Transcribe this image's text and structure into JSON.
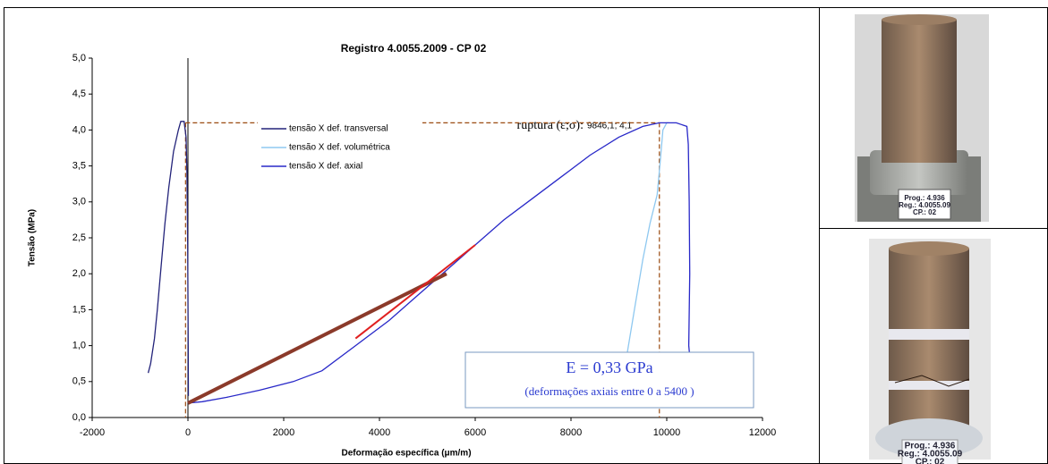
{
  "chart_data": {
    "type": "line",
    "title": "Registro 4.0055.2009 - CP 02",
    "x_label": "Deformação específica (μm/m)",
    "y_label": "Tensão (MPa)",
    "xlim": [
      -2000,
      12000
    ],
    "xticks": [
      -2000,
      0,
      2000,
      4000,
      6000,
      8000,
      10000,
      12000
    ],
    "ylim": [
      0,
      5
    ],
    "yticks": [
      {
        "value": 0,
        "label": "0,0"
      },
      {
        "value": 0.5,
        "label": "0,5"
      },
      {
        "value": 1,
        "label": "1,0"
      },
      {
        "value": 1.5,
        "label": "1,5"
      },
      {
        "value": 2,
        "label": "2,0"
      },
      {
        "value": 2.5,
        "label": "2,5"
      },
      {
        "value": 3,
        "label": "3,0"
      },
      {
        "value": 3.5,
        "label": "3,5"
      },
      {
        "value": 4,
        "label": "4,0"
      },
      {
        "value": 4.5,
        "label": "4,5"
      },
      {
        "value": 5,
        "label": "5,0"
      }
    ],
    "series": [
      {
        "name": "tensão X def. transversal",
        "color": "#23237a",
        "x": [
          -830,
          -780,
          -700,
          -640,
          -560,
          -480,
          -400,
          -300,
          -200,
          -150,
          -80,
          -40,
          -20,
          -5,
          5,
          10
        ],
        "values": [
          0.62,
          0.75,
          1.1,
          1.5,
          2.1,
          2.7,
          3.2,
          3.7,
          4.0,
          4.12,
          4.12,
          3.9,
          3.4,
          2.4,
          1.0,
          0.3
        ]
      },
      {
        "name": "tensão X def. volumétrica",
        "color": "#8ec8f0",
        "x": [
          9100,
          9200,
          9350,
          9500,
          9650,
          9800,
          9870,
          9920,
          10000,
          10050
        ],
        "values": [
          0.6,
          1.0,
          1.6,
          2.2,
          2.7,
          3.1,
          3.6,
          4.0,
          4.1,
          4.1
        ]
      },
      {
        "name": "tensão X def. axial",
        "color": "#2828c8",
        "x": [
          0,
          300,
          800,
          1500,
          2200,
          2800,
          3500,
          4200,
          4800,
          5400,
          6000,
          6600,
          7200,
          7800,
          8400,
          9000,
          9500,
          9846,
          10200,
          10420,
          10450,
          10470,
          10480,
          10460,
          10500
        ],
        "values": [
          0.2,
          0.22,
          0.28,
          0.38,
          0.5,
          0.65,
          1.0,
          1.35,
          1.7,
          2.05,
          2.4,
          2.75,
          3.05,
          3.35,
          3.65,
          3.9,
          4.05,
          4.1,
          4.1,
          4.05,
          3.8,
          3.0,
          2.0,
          1.0,
          0.7
        ]
      }
    ],
    "fit_line": {
      "color": "#e02020",
      "x": [
        3500,
        6000
      ],
      "values": [
        1.1,
        2.4
      ]
    },
    "secant_line": {
      "color": "#8b3a2a",
      "x": [
        0,
        5400
      ],
      "values": [
        0.2,
        2.0
      ]
    },
    "rupture": {
      "x": 9846.1,
      "y": 4.1,
      "guide_x": -50,
      "color": "#9a4a10"
    },
    "rupture_caption": "ruptura (ε;σ):",
    "rupture_label": "9846,1; 4,1",
    "modulus_text": "E = 0,33 GPa",
    "modulus_note": "(deformações axiais entre 0 a 5400 )",
    "legend": "upper-left"
  },
  "photos": [
    {
      "label": [
        "Prog.: 4.936",
        "Reg.: 4.0055.09",
        "CP.: 02"
      ]
    },
    {
      "label": [
        "Prog.: 4.936",
        "Reg.: 4.0055.09",
        "CP.: 02"
      ]
    }
  ]
}
